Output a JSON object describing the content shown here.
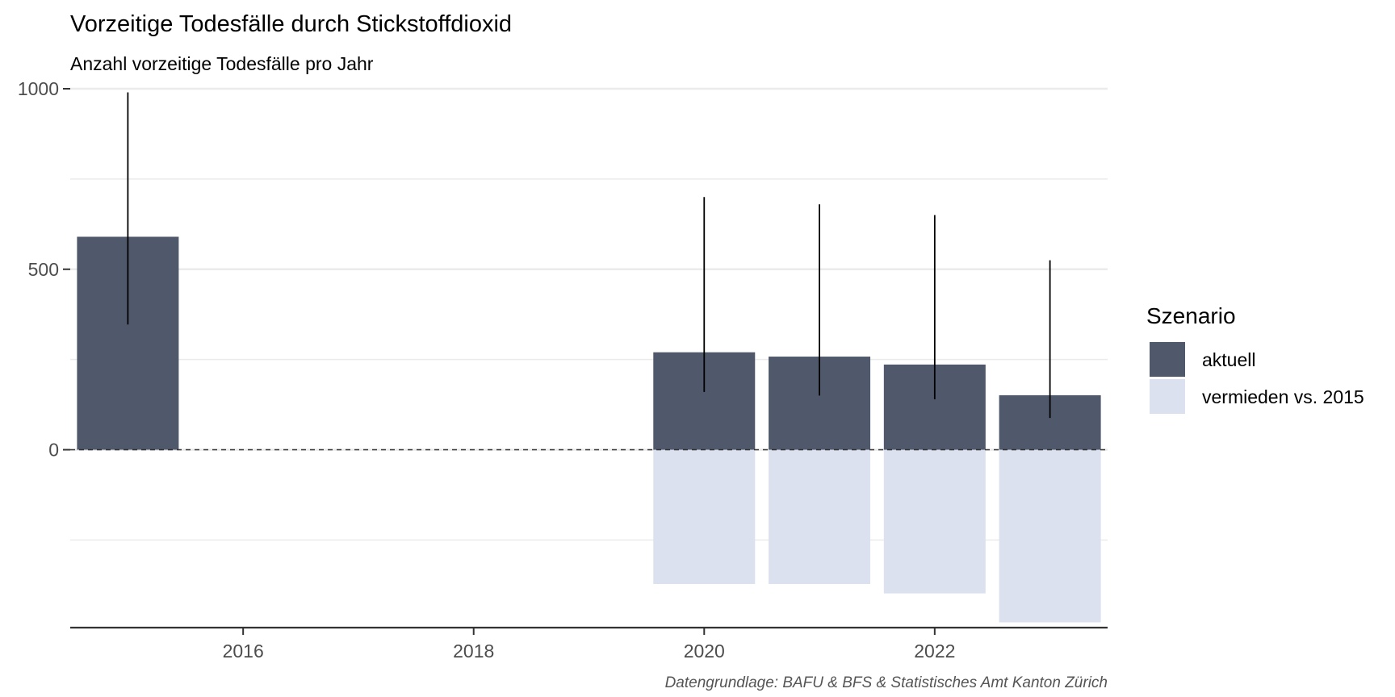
{
  "chart_data": {
    "type": "bar",
    "title": "Vorzeitige Todesfälle durch Stickstoffdioxid",
    "subtitle": "Anzahl vorzeitige Todesfälle pro Jahr",
    "caption": "Datengrundlage: BAFU & BFS & Statistisches Amt Kanton Zürich",
    "xlabel": "",
    "ylabel": "",
    "ylim": [
      -500,
      1000
    ],
    "xlim": [
      2014.5,
      2023.5
    ],
    "y_ticks": [
      0,
      500,
      1000
    ],
    "x_ticks": [
      2016,
      2018,
      2020,
      2022
    ],
    "x": [
      2015,
      2020,
      2021,
      2022,
      2023
    ],
    "series": [
      {
        "name": "aktuell",
        "color": "#4f596b",
        "values": [
          590,
          270,
          258,
          236,
          151
        ]
      },
      {
        "name": "vermieden vs. 2015",
        "color": "#dbe1ee",
        "values": [
          0,
          -372,
          -372,
          -398,
          -478
        ]
      }
    ],
    "error_bars": [
      {
        "x": 2015,
        "low": 347,
        "high": 990
      },
      {
        "x": 2020,
        "low": 160,
        "high": 700
      },
      {
        "x": 2021,
        "low": 150,
        "high": 680
      },
      {
        "x": 2022,
        "low": 140,
        "high": 650
      },
      {
        "x": 2023,
        "low": 88,
        "high": 525
      }
    ],
    "reference_line": {
      "y": 0,
      "style": "dashed"
    },
    "legend": {
      "title": "Szenario",
      "position": "right"
    },
    "grid": true
  }
}
